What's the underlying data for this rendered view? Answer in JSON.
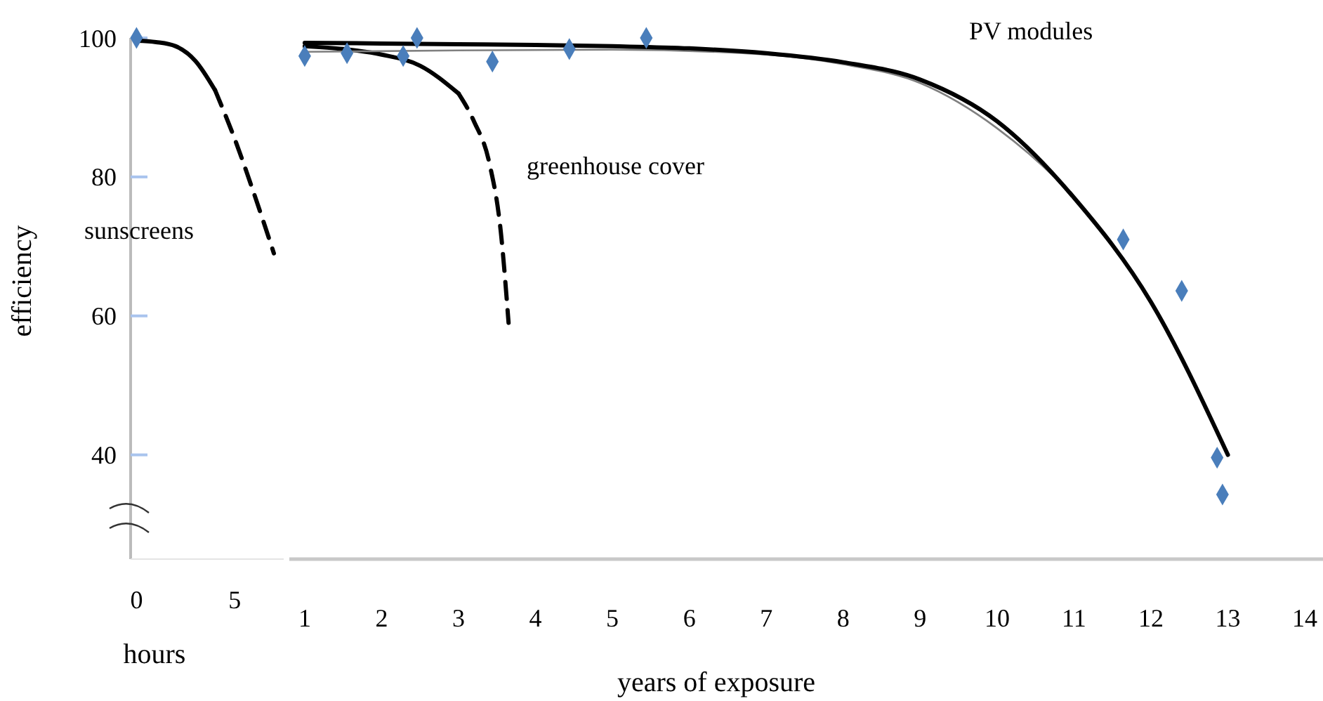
{
  "chart_data": [
    {
      "type": "line",
      "xlabel": "hours",
      "ylabel": "efficiency",
      "xlim": [
        -0.3,
        7.5
      ],
      "xticks": [
        0,
        5
      ],
      "ylim": [
        25,
        100
      ],
      "yticks": [
        40,
        60,
        80,
        100
      ],
      "marker": "none",
      "series": [
        {
          "color": "#000000",
          "line_style": "solid",
          "x": [
            0,
            1,
            2,
            3,
            4
          ],
          "values": [
            99.6,
            99.4,
            98.8,
            96.7,
            92.5
          ]
        },
        {
          "color": "#000000",
          "line_style": "dashed",
          "x": [
            4,
            5,
            6,
            7
          ],
          "values": [
            92.5,
            85.5,
            77.5,
            69
          ]
        },
        {
          "type": "scatter",
          "marker": "diamond",
          "color": "#4a7ebb",
          "x": [
            0
          ],
          "values": [
            100
          ]
        }
      ],
      "annotations": [
        "sunscreens"
      ]
    },
    {
      "type": "line",
      "xlabel": "years of exposure",
      "xlim": [
        0.8,
        14.2
      ],
      "xticks": [
        1,
        2,
        3,
        4,
        5,
        6,
        7,
        8,
        9,
        10,
        11,
        12,
        13,
        14
      ],
      "ylim": [
        25,
        100
      ],
      "tick_labels": "x",
      "marker": "none",
      "series": [
        {
          "color": "#000000",
          "line_style": "solid",
          "x": [
            1,
            1.5,
            2,
            2.5,
            3
          ],
          "values": [
            98.8,
            98.4,
            97.6,
            96,
            92
          ]
        },
        {
          "color": "#000000",
          "line_style": "dashed",
          "x": [
            3,
            3.2,
            3.4,
            3.55,
            3.65
          ],
          "values": [
            92,
            88,
            82,
            72,
            59
          ]
        },
        {
          "color": "#808080",
          "line_style": "solid",
          "x": [
            1,
            3,
            5,
            7,
            8,
            9,
            10,
            11,
            12,
            13
          ],
          "values": [
            98,
            98.2,
            98.3,
            97.6,
            96.2,
            93.5,
            87,
            77,
            62,
            40
          ]
        },
        {
          "color": "#000000",
          "line_style": "solid",
          "x": [
            1,
            2,
            3,
            4,
            5,
            6,
            7,
            8,
            9,
            10,
            11,
            12,
            13
          ],
          "values": [
            99.3,
            99.2,
            99.1,
            99,
            98.8,
            98.5,
            97.8,
            96.5,
            94,
            88,
            77,
            62,
            40
          ]
        },
        {
          "type": "scatter",
          "marker": "diamond",
          "color": "#4a7ebb",
          "x": [
            1,
            1.55,
            2.28,
            2.46,
            3.44,
            4.44,
            5.44,
            11.64,
            12.4,
            12.86,
            12.93
          ],
          "values": [
            97.4,
            97.8,
            97.4,
            100,
            96.6,
            98.4,
            100,
            71,
            63.6,
            39.6,
            34.3
          ]
        }
      ],
      "annotations": [
        "greenhouse cover",
        "PV modules"
      ]
    }
  ]
}
